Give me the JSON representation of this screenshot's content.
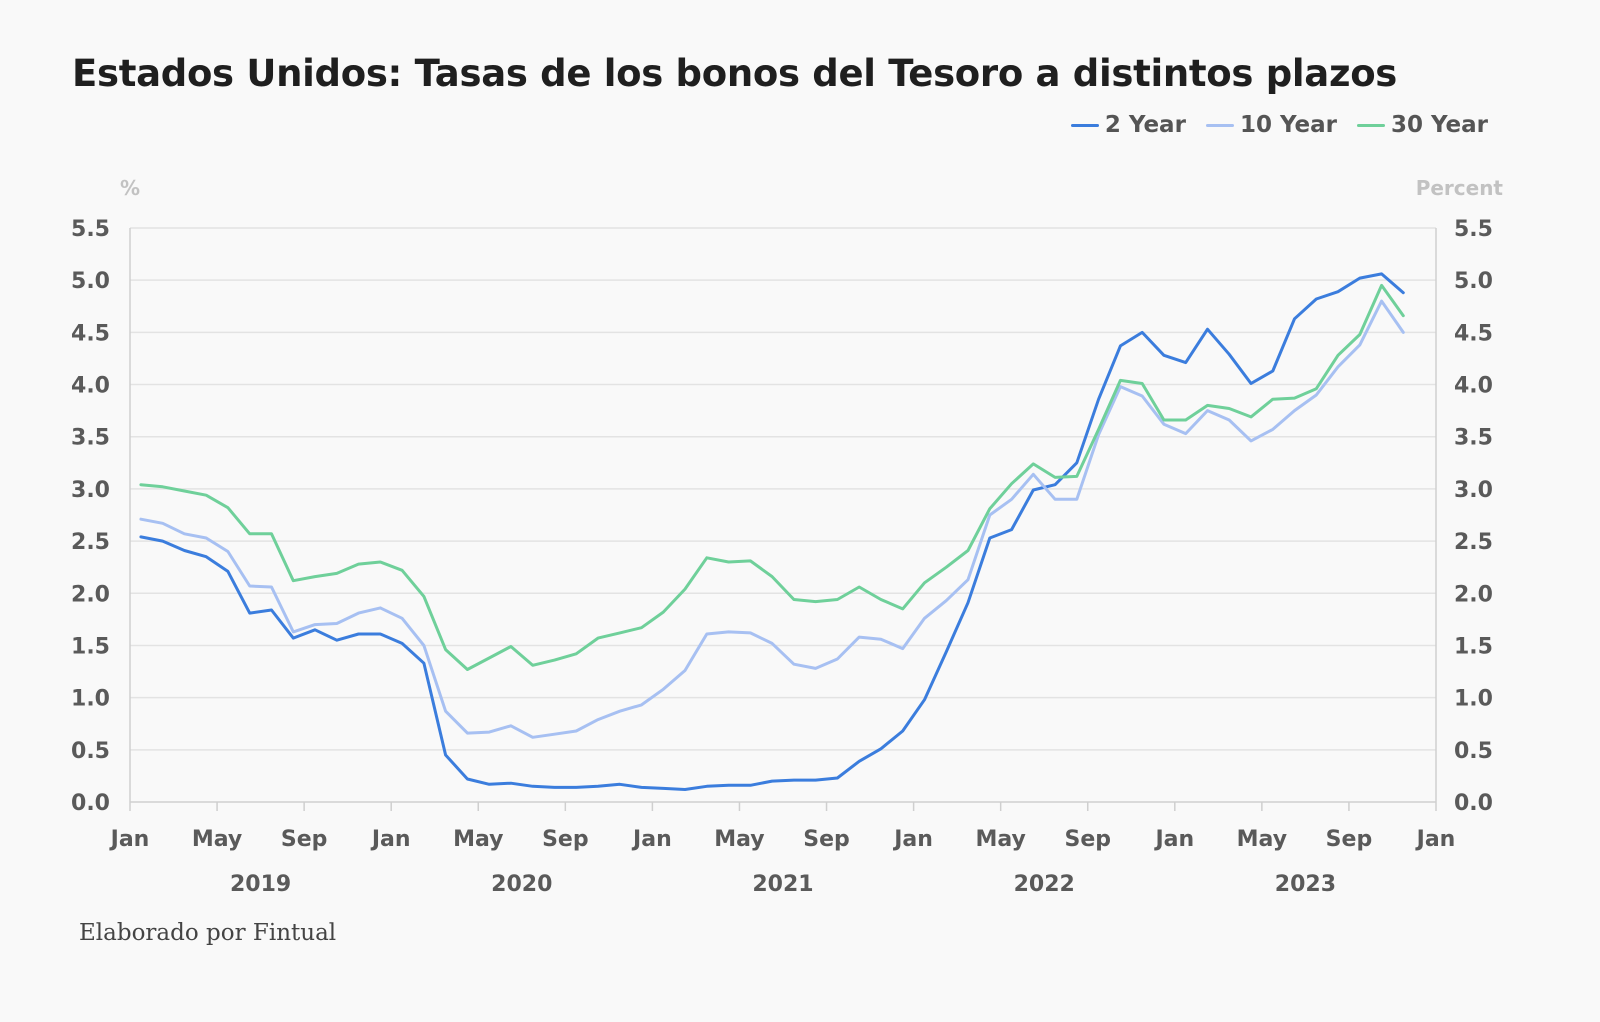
{
  "footer": "Elaborado por Fintual",
  "colors": {
    "two_year": "#3b7ddd",
    "ten_year": "#a7c0f2",
    "thirty_year": "#6fd09a",
    "grid": "#e3e3e3",
    "axis": "#cfcfcf"
  },
  "chart_data": {
    "type": "line",
    "title": "Estados Unidos: Tasas de los bonos del Tesoro a distintos plazos",
    "left_axis_label": "%",
    "right_axis_label": "Percent",
    "ylim": [
      0,
      5.5
    ],
    "yticks": [
      "0.0",
      "0.5",
      "1.0",
      "1.5",
      "2.0",
      "2.5",
      "3.0",
      "3.5",
      "4.0",
      "4.5",
      "5.0",
      "5.5"
    ],
    "xlim_months": [
      0,
      60
    ],
    "x_note": "months since Jan 2019",
    "xticks": [
      {
        "m": 0,
        "label": "Jan"
      },
      {
        "m": 4,
        "label": "May"
      },
      {
        "m": 8,
        "label": "Sep"
      },
      {
        "m": 12,
        "label": "Jan"
      },
      {
        "m": 16,
        "label": "May"
      },
      {
        "m": 20,
        "label": "Sep"
      },
      {
        "m": 24,
        "label": "Jan"
      },
      {
        "m": 28,
        "label": "May"
      },
      {
        "m": 32,
        "label": "Sep"
      },
      {
        "m": 36,
        "label": "Jan"
      },
      {
        "m": 40,
        "label": "May"
      },
      {
        "m": 44,
        "label": "Sep"
      },
      {
        "m": 48,
        "label": "Jan"
      },
      {
        "m": 52,
        "label": "May"
      },
      {
        "m": 56,
        "label": "Sep"
      },
      {
        "m": 60,
        "label": "Jan"
      }
    ],
    "years": [
      {
        "m": 6,
        "label": "2019"
      },
      {
        "m": 18,
        "label": "2020"
      },
      {
        "m": 30,
        "label": "2021"
      },
      {
        "m": 42,
        "label": "2022"
      },
      {
        "m": 54,
        "label": "2023"
      }
    ],
    "x": [
      0.5,
      1.5,
      2.5,
      3.5,
      4.5,
      5.5,
      6.5,
      7.5,
      8.5,
      9.5,
      10.5,
      11.5,
      12.5,
      13.5,
      14.5,
      15.5,
      16.5,
      17.5,
      18.5,
      19.5,
      20.5,
      21.5,
      22.5,
      23.5,
      24.5,
      25.5,
      26.5,
      27.5,
      28.5,
      29.5,
      30.5,
      31.5,
      32.5,
      33.5,
      34.5,
      35.5,
      36.5,
      37.5,
      38.5,
      39.5,
      40.5,
      41.5,
      42.5,
      43.5,
      44.5,
      45.5,
      46.5,
      47.5,
      48.5,
      49.5,
      50.5,
      51.5,
      52.5,
      53.5,
      54.5,
      55.5,
      56.5,
      57.5,
      58.5
    ],
    "series": [
      {
        "name": "2 Year",
        "color_key": "two_year",
        "values": [
          2.54,
          2.5,
          2.41,
          2.35,
          2.21,
          1.81,
          1.84,
          1.57,
          1.65,
          1.55,
          1.61,
          1.61,
          1.52,
          1.33,
          0.45,
          0.22,
          0.17,
          0.18,
          0.15,
          0.14,
          0.14,
          0.15,
          0.17,
          0.14,
          0.13,
          0.12,
          0.15,
          0.16,
          0.16,
          0.2,
          0.21,
          0.21,
          0.23,
          0.39,
          0.51,
          0.68,
          0.98,
          1.44,
          1.91,
          2.53,
          2.61,
          2.99,
          3.04,
          3.25,
          3.86,
          4.37,
          4.5,
          4.28,
          4.21,
          4.53,
          4.29,
          4.01,
          4.13,
          4.63,
          4.82,
          4.89,
          5.02,
          5.06,
          4.88
        ]
      },
      {
        "name": "10 Year",
        "color_key": "ten_year",
        "values": [
          2.71,
          2.67,
          2.57,
          2.53,
          2.4,
          2.07,
          2.06,
          1.63,
          1.7,
          1.71,
          1.81,
          1.86,
          1.76,
          1.5,
          0.87,
          0.66,
          0.67,
          0.73,
          0.62,
          0.65,
          0.68,
          0.79,
          0.87,
          0.93,
          1.08,
          1.26,
          1.61,
          1.63,
          1.62,
          1.52,
          1.32,
          1.28,
          1.37,
          1.58,
          1.56,
          1.47,
          1.76,
          1.93,
          2.13,
          2.75,
          2.9,
          3.14,
          2.9,
          2.9,
          3.52,
          3.98,
          3.89,
          3.62,
          3.53,
          3.75,
          3.66,
          3.46,
          3.57,
          3.75,
          3.9,
          4.17,
          4.38,
          4.8,
          4.5
        ]
      },
      {
        "name": "30 Year",
        "color_key": "thirty_year",
        "values": [
          3.04,
          3.02,
          2.98,
          2.94,
          2.82,
          2.57,
          2.57,
          2.12,
          2.16,
          2.19,
          2.28,
          2.3,
          2.22,
          1.97,
          1.46,
          1.27,
          1.38,
          1.49,
          1.31,
          1.36,
          1.42,
          1.57,
          1.62,
          1.67,
          1.82,
          2.04,
          2.34,
          2.3,
          2.31,
          2.16,
          1.94,
          1.92,
          1.94,
          2.06,
          1.94,
          1.85,
          2.1,
          2.25,
          2.41,
          2.81,
          3.05,
          3.24,
          3.11,
          3.12,
          3.57,
          4.04,
          4.01,
          3.66,
          3.66,
          3.8,
          3.77,
          3.69,
          3.86,
          3.87,
          3.96,
          4.28,
          4.48,
          4.95,
          4.66
        ]
      }
    ]
  }
}
